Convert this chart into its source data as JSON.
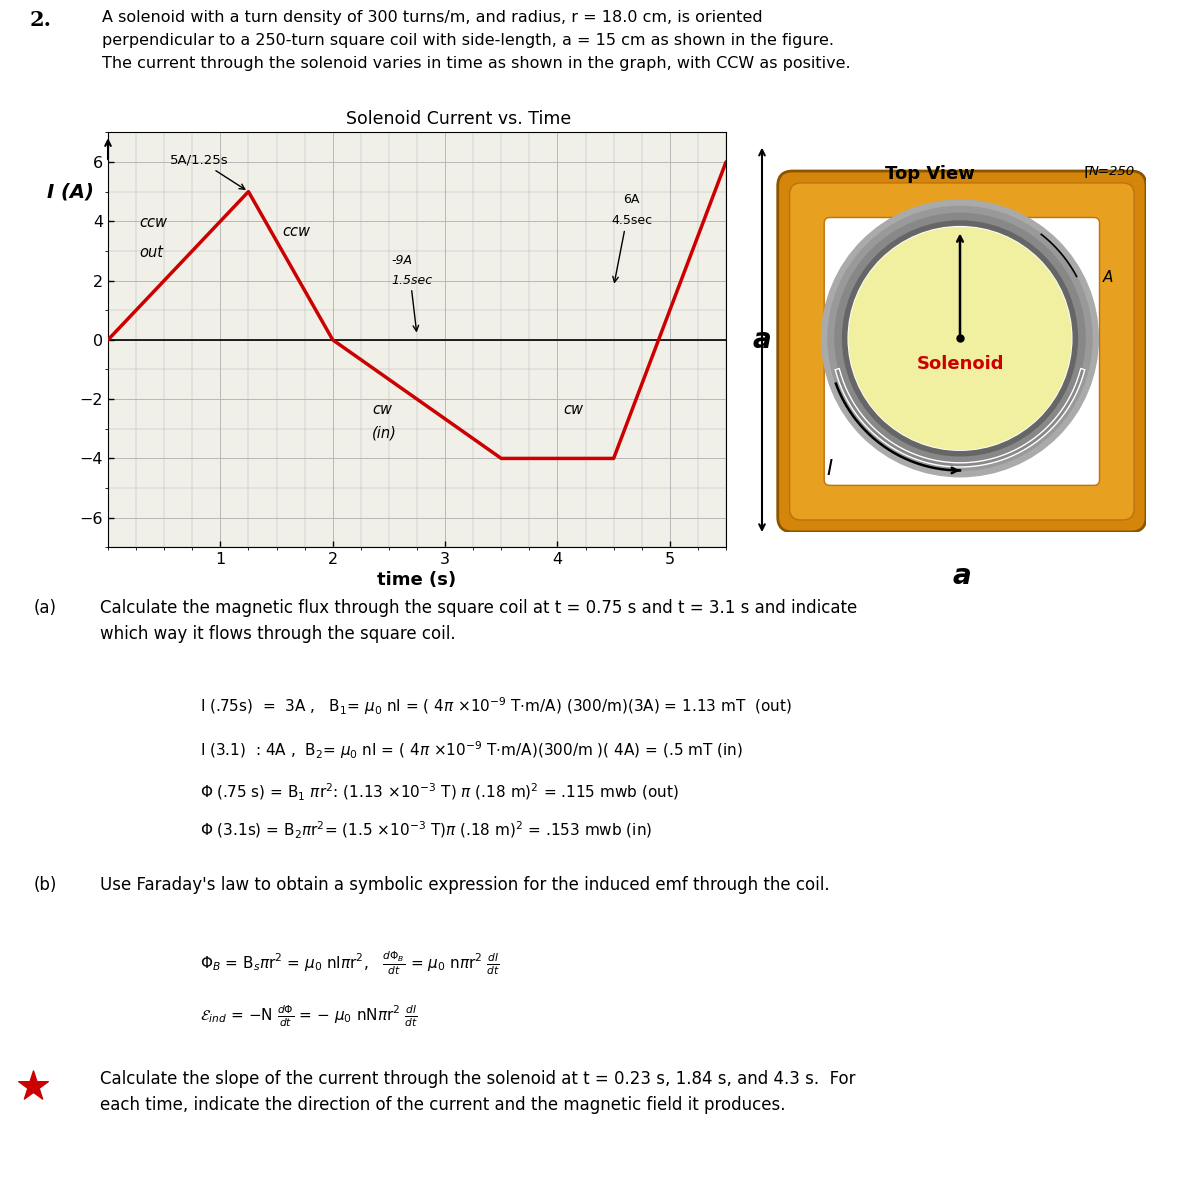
{
  "problem_number": "2.",
  "problem_text": "A solenoid with a turn density of 300 turns/m, and radius, r = 18.0 cm, is oriented\nperpendicular to a 250-turn square coil with side-length, a = 15 cm as shown in the figure.\nThe current through the solenoid varies in time as shown in the graph, with CCW as positive.",
  "graph_title": "Solenoid Current vs. Time",
  "xlabel": "time (s)",
  "ylabel": "I (A)",
  "xlim": [
    0,
    5.5
  ],
  "ylim": [
    -7,
    7
  ],
  "yticks": [
    -6.0,
    -4.0,
    -2.0,
    0.0,
    2.0,
    4.0,
    6.0
  ],
  "xticks": [
    1.0,
    2.0,
    3.0,
    4.0,
    5.0
  ],
  "line_x": [
    0,
    1.25,
    2.0,
    3.5,
    4.5,
    5.5
  ],
  "line_y": [
    0,
    5,
    0,
    -4,
    -4,
    6
  ],
  "line_color": "#cc0000",
  "line_width": 2.5,
  "grid_color": "#b8b8b8",
  "bg_color": "#f0f0e8",
  "top_view_title": "Top View",
  "N250_label": "N=250",
  "solenoid_label": "Solenoid",
  "solenoid_color": "#cc0000",
  "square_color_outer": "#d4860a",
  "square_color_inner": "#e8a020",
  "circle_fill": "#f0f0a0",
  "part_a_label": "(a)",
  "part_a_text": "Calculate the magnetic flux through the square coil at t = 0.75 s and t = 3.1 s and indicate\nwhich way it flows through the square coil.",
  "part_b_label": "(b)",
  "part_b_text": "Use Faraday's law to obtain a symbolic expression for the induced emf through the coil.",
  "part_c_text": "Calculate the slope of the current through the solenoid at t = 0.23 s, 1.84 s, and 4.3 s.  For\neach time, indicate the direction of the current and the magnetic field it produces."
}
